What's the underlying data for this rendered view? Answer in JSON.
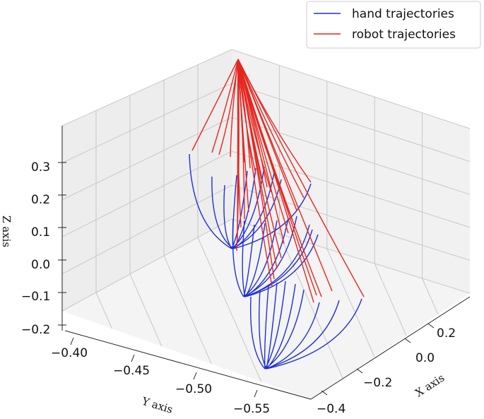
{
  "chart_data": {
    "type": "line",
    "projection": "3d",
    "title": "",
    "xlabel": "X axis",
    "ylabel": "Y axis",
    "zlabel": "Z axis",
    "x_ticks": [
      "0.2",
      "0.0",
      "−0.2",
      "−0.4"
    ],
    "y_ticks": [
      "−0.40",
      "−0.45",
      "−0.50",
      "−0.55"
    ],
    "z_ticks": [
      "0.3",
      "0.2",
      "0.1",
      "0.0",
      "−0.1",
      "−0.2"
    ],
    "legend_position": "top-right",
    "series": [
      {
        "name": "hand trajectories",
        "color": "#1f2fd6",
        "count": 30
      },
      {
        "name": "robot trajectories",
        "color": "#e5261f",
        "count": 30
      }
    ],
    "grid": true
  }
}
